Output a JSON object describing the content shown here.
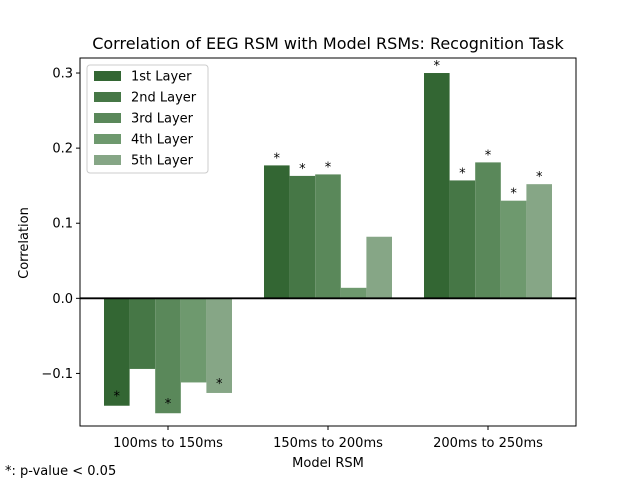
{
  "chart_data": {
    "type": "bar",
    "title": "Correlation of EEG RSM with Model RSMs: Recognition Task",
    "xlabel": "Model RSM",
    "ylabel": "Correlation",
    "categories": [
      "100ms to 150ms",
      "150ms to 200ms",
      "200ms to 250ms"
    ],
    "ylim": [
      -0.17,
      0.32
    ],
    "yticks": [
      -0.1,
      0.0,
      0.1,
      0.2,
      0.3
    ],
    "ytick_labels": [
      "−0.1",
      "0.0",
      "0.1",
      "0.2",
      "0.3"
    ],
    "grid": false,
    "zero_line": true,
    "legend_position": "top-left",
    "series": [
      {
        "name": "1st Layer",
        "color": "#336633",
        "values": [
          -0.143,
          0.177,
          0.3
        ],
        "significant": [
          true,
          true,
          true
        ]
      },
      {
        "name": "2nd Layer",
        "color": "#467746",
        "values": [
          -0.094,
          0.163,
          0.157
        ],
        "significant": [
          false,
          true,
          true
        ]
      },
      {
        "name": "3rd Layer",
        "color": "#5a885a",
        "values": [
          -0.153,
          0.165,
          0.181
        ],
        "significant": [
          true,
          true,
          true
        ]
      },
      {
        "name": "4th Layer",
        "color": "#6e996e",
        "values": [
          -0.112,
          0.014,
          0.13
        ],
        "significant": [
          false,
          false,
          true
        ]
      },
      {
        "name": "5th Layer",
        "color": "#86a686",
        "values": [
          -0.126,
          0.082,
          0.152
        ],
        "significant": [
          true,
          false,
          true
        ]
      }
    ],
    "significance_marker": "*",
    "footnote": "*: p-value < 0.05"
  }
}
